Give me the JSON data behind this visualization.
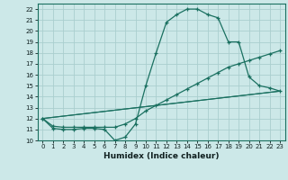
{
  "xlabel": "Humidex (Indice chaleur)",
  "bg_color": "#cce8e8",
  "grid_color": "#aacece",
  "line_color": "#1a7060",
  "xlim": [
    -0.5,
    23.5
  ],
  "ylim": [
    10,
    22.5
  ],
  "xticks": [
    0,
    1,
    2,
    3,
    4,
    5,
    6,
    7,
    8,
    9,
    10,
    11,
    12,
    13,
    14,
    15,
    16,
    17,
    18,
    19,
    20,
    21,
    22,
    23
  ],
  "yticks": [
    10,
    11,
    12,
    13,
    14,
    15,
    16,
    17,
    18,
    19,
    20,
    21,
    22
  ],
  "xtick_labels": [
    "0",
    "1",
    "2",
    "3",
    "4",
    "5",
    "6",
    "7",
    "8",
    "9",
    "10",
    "11",
    "12",
    "13",
    "14",
    "15",
    "16",
    "17",
    "18",
    "19",
    "20",
    "21",
    "22",
    "23"
  ],
  "ytick_labels": [
    "10",
    "11",
    "12",
    "13",
    "14",
    "15",
    "16",
    "17",
    "18",
    "19",
    "20",
    "21",
    "22"
  ],
  "line1_x": [
    0,
    1,
    2,
    3,
    4,
    5,
    6,
    7,
    8,
    9,
    10,
    11,
    12,
    13,
    14,
    15,
    16,
    17,
    18,
    19,
    20,
    21,
    22,
    23
  ],
  "line1_y": [
    12.0,
    11.1,
    11.0,
    11.0,
    11.1,
    11.1,
    11.0,
    10.0,
    10.3,
    11.5,
    15.0,
    18.0,
    20.8,
    21.5,
    22.0,
    22.0,
    21.5,
    21.2,
    19.0,
    19.0,
    15.8,
    15.0,
    14.8,
    14.5
  ],
  "line2_x": [
    0,
    1,
    2,
    3,
    4,
    5,
    6,
    7,
    8,
    9,
    10,
    11,
    12,
    13,
    14,
    15,
    16,
    17,
    18,
    19,
    20,
    21,
    22,
    23
  ],
  "line2_y": [
    12.0,
    11.3,
    11.2,
    11.2,
    11.2,
    11.2,
    11.2,
    11.2,
    11.5,
    12.0,
    12.7,
    13.2,
    13.7,
    14.2,
    14.7,
    15.2,
    15.7,
    16.2,
    16.7,
    17.0,
    17.3,
    17.6,
    17.9,
    18.2
  ],
  "line3_x": [
    0,
    23
  ],
  "line3_y": [
    12.0,
    14.5
  ],
  "line4_x": [
    0,
    23
  ],
  "line4_y": [
    12.0,
    14.5
  ],
  "xlabel_fontsize": 6.5,
  "tick_fontsize": 5.0
}
